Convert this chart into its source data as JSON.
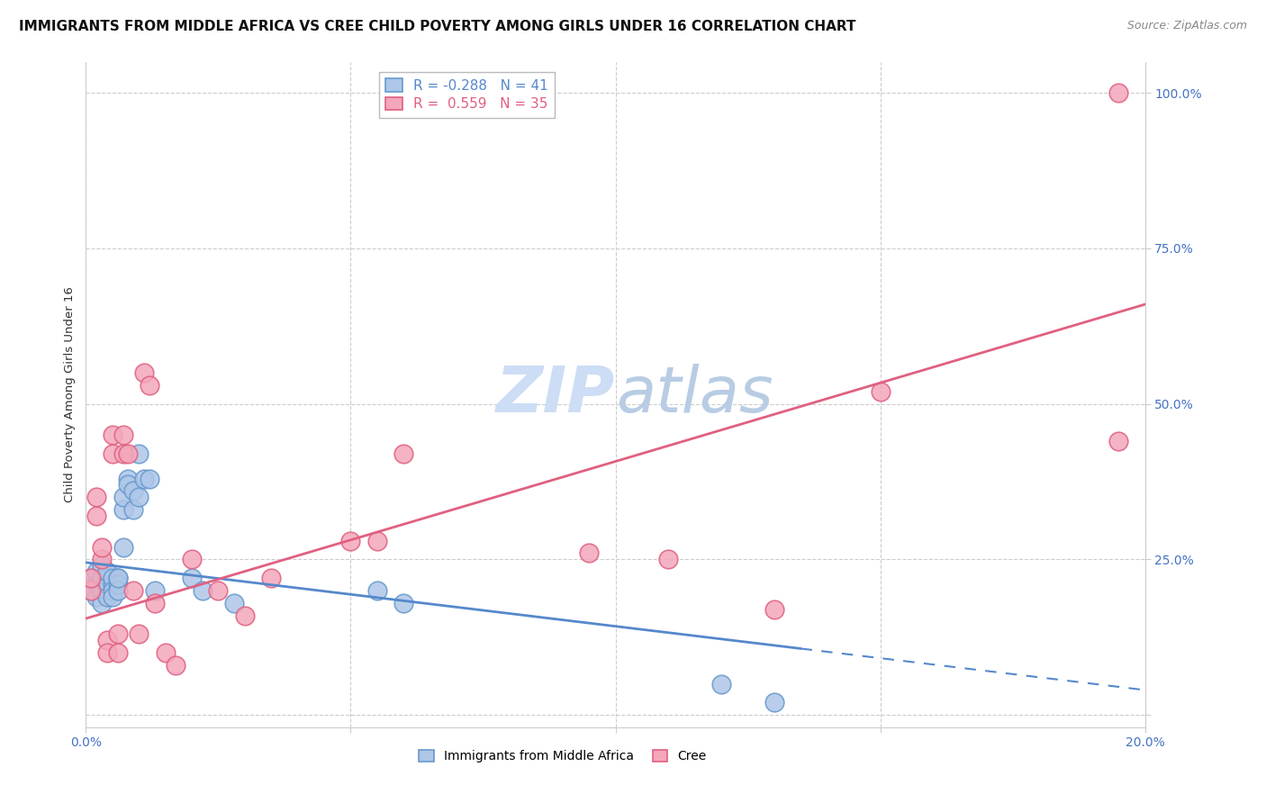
{
  "title": "IMMIGRANTS FROM MIDDLE AFRICA VS CREE CHILD POVERTY AMONG GIRLS UNDER 16 CORRELATION CHART",
  "source": "Source: ZipAtlas.com",
  "ylabel": "Child Poverty Among Girls Under 16",
  "xlim": [
    0.0,
    0.2
  ],
  "ylim": [
    -0.02,
    1.05
  ],
  "ytick_vals": [
    0.0,
    0.25,
    0.5,
    0.75,
    1.0
  ],
  "ytick_labels": [
    "",
    "25.0%",
    "50.0%",
    "75.0%",
    "100.0%"
  ],
  "xtick_vals": [
    0.0,
    0.05,
    0.1,
    0.15,
    0.2
  ],
  "xtick_labels": [
    "0.0%",
    "",
    "",
    "",
    "20.0%"
  ],
  "blue_R": -0.288,
  "blue_N": 41,
  "pink_R": 0.559,
  "pink_N": 35,
  "blue_fill": "#aec6e8",
  "pink_fill": "#f4a7bb",
  "blue_edge": "#6699cc",
  "pink_edge": "#e06080",
  "line_blue": "#5588cc",
  "line_pink": "#e06080",
  "axis_tick_color": "#4472c4",
  "grid_color": "#cccccc",
  "watermark_color": "#ccddf5",
  "bg": "#ffffff",
  "blue_line_y0": 0.245,
  "blue_line_y1": 0.04,
  "blue_line_solid_end": 0.135,
  "pink_line_y0": 0.155,
  "pink_line_y1": 0.66,
  "blue_x": [
    0.001,
    0.001,
    0.002,
    0.002,
    0.002,
    0.003,
    0.003,
    0.003,
    0.003,
    0.004,
    0.004,
    0.004,
    0.004,
    0.004,
    0.005,
    0.005,
    0.005,
    0.005,
    0.006,
    0.006,
    0.006,
    0.006,
    0.007,
    0.007,
    0.007,
    0.008,
    0.008,
    0.009,
    0.009,
    0.01,
    0.01,
    0.011,
    0.012,
    0.013,
    0.02,
    0.022,
    0.028,
    0.055,
    0.06,
    0.12,
    0.13
  ],
  "blue_y": [
    0.2,
    0.22,
    0.19,
    0.21,
    0.23,
    0.2,
    0.22,
    0.18,
    0.24,
    0.22,
    0.2,
    0.21,
    0.19,
    0.23,
    0.21,
    0.22,
    0.2,
    0.19,
    0.22,
    0.21,
    0.2,
    0.22,
    0.33,
    0.35,
    0.27,
    0.38,
    0.37,
    0.36,
    0.33,
    0.42,
    0.35,
    0.38,
    0.38,
    0.2,
    0.22,
    0.2,
    0.18,
    0.2,
    0.18,
    0.05,
    0.02
  ],
  "pink_x": [
    0.001,
    0.001,
    0.002,
    0.002,
    0.003,
    0.003,
    0.004,
    0.004,
    0.005,
    0.005,
    0.006,
    0.006,
    0.007,
    0.007,
    0.008,
    0.009,
    0.01,
    0.011,
    0.012,
    0.013,
    0.015,
    0.017,
    0.02,
    0.025,
    0.03,
    0.035,
    0.05,
    0.055,
    0.06,
    0.095,
    0.11,
    0.13,
    0.15,
    0.195,
    0.195
  ],
  "pink_y": [
    0.2,
    0.22,
    0.35,
    0.32,
    0.25,
    0.27,
    0.12,
    0.1,
    0.45,
    0.42,
    0.13,
    0.1,
    0.42,
    0.45,
    0.42,
    0.2,
    0.13,
    0.55,
    0.53,
    0.18,
    0.1,
    0.08,
    0.25,
    0.2,
    0.16,
    0.22,
    0.28,
    0.28,
    0.42,
    0.26,
    0.25,
    0.17,
    0.52,
    0.44,
    1.0
  ],
  "title_fontsize": 11,
  "source_fontsize": 9,
  "label_fontsize": 9.5,
  "tick_fontsize": 10,
  "legend_fontsize": 11
}
